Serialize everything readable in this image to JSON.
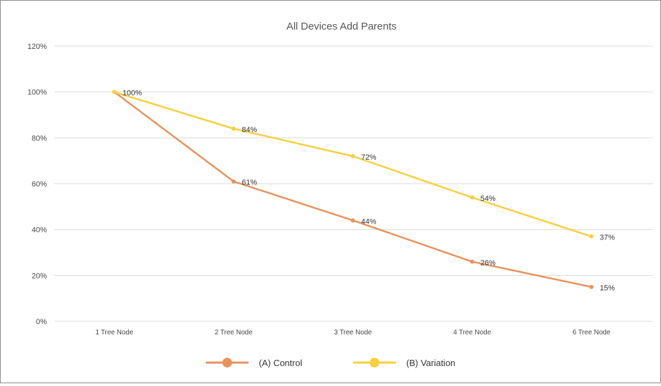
{
  "chart_data": {
    "type": "line",
    "title": "All Devices Add Parents",
    "categories": [
      "1 Tree Node",
      "2 Tree Node",
      "3 Tree Node",
      "4 Tree Node",
      "6 Tree Node"
    ],
    "ylim": [
      0,
      120
    ],
    "yticks": [
      0,
      20,
      40,
      60,
      80,
      100,
      120
    ],
    "ytick_labels": [
      "0%",
      "20%",
      "40%",
      "60%",
      "80%",
      "100%",
      "120%"
    ],
    "grid": true,
    "legend_position": "bottom",
    "series": [
      {
        "name": "(A) Control",
        "color": "#E8925A",
        "values": [
          100,
          61,
          44,
          26,
          15
        ],
        "labels": [
          "100%",
          "61%",
          "44%",
          "26%",
          "15%"
        ]
      },
      {
        "name": "(B) Variation",
        "color": "#F7CF3A",
        "values": [
          100,
          84,
          72,
          54,
          37
        ],
        "labels": [
          "100%",
          "84%",
          "72%",
          "54%",
          "37%"
        ]
      }
    ]
  }
}
